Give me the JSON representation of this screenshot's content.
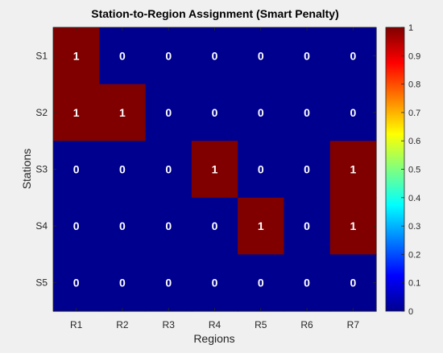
{
  "chart_data": {
    "type": "heatmap",
    "title": "Station-to-Region Assignment (Smart Penalty)",
    "xlabel": "Regions",
    "ylabel": "Stations",
    "x_categories": [
      "R1",
      "R2",
      "R3",
      "R4",
      "R5",
      "R6",
      "R7"
    ],
    "y_categories": [
      "S1",
      "S2",
      "S3",
      "S4",
      "S5"
    ],
    "values": [
      [
        1,
        0,
        0,
        0,
        0,
        0,
        0
      ],
      [
        1,
        1,
        0,
        0,
        0,
        0,
        0
      ],
      [
        0,
        0,
        0,
        1,
        0,
        0,
        1
      ],
      [
        0,
        0,
        0,
        0,
        1,
        0,
        1
      ],
      [
        0,
        0,
        0,
        0,
        0,
        0,
        0
      ]
    ],
    "value_range": [
      0,
      1
    ],
    "colormap": "jet",
    "colorbar": {
      "ticks": [
        "0",
        "0.1",
        "0.2",
        "0.3",
        "0.4",
        "0.5",
        "0.6",
        "0.7",
        "0.8",
        "0.9",
        "1"
      ]
    },
    "cell_labels": true,
    "colors": {
      "low": "#00008f",
      "high": "#800000",
      "cell_text": "#ffffff"
    }
  }
}
